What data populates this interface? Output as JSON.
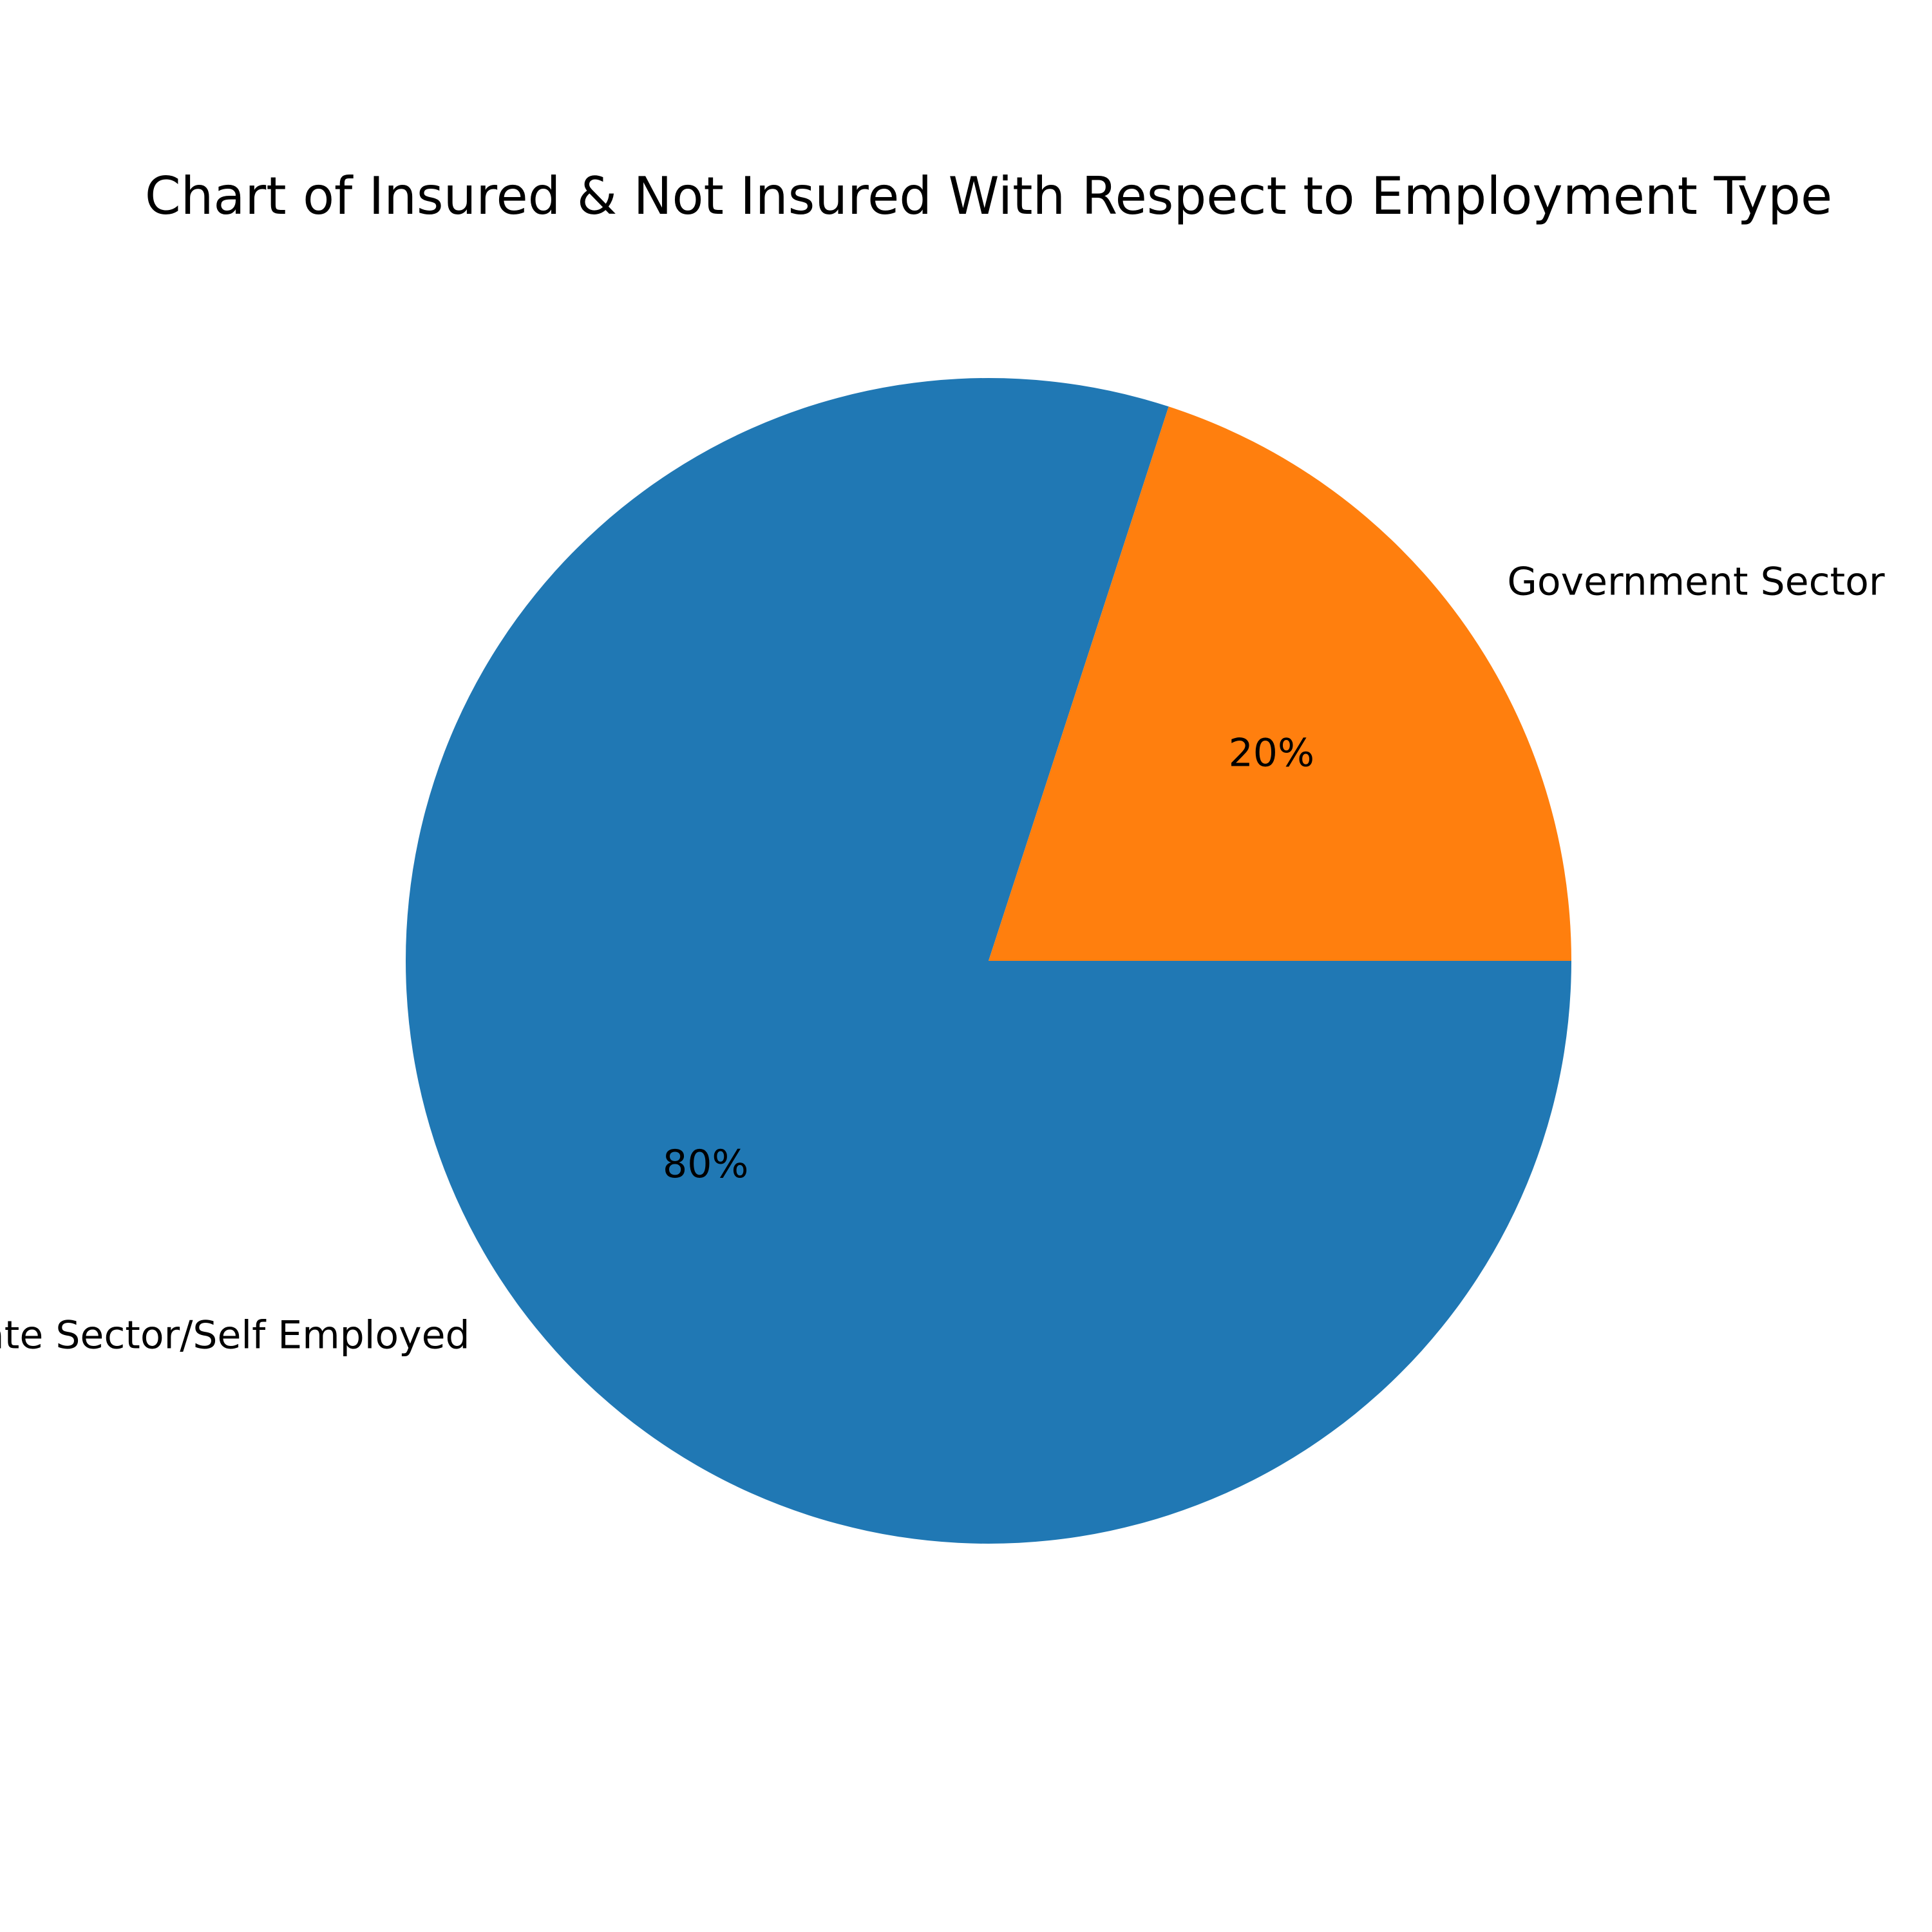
{
  "chart_data": {
    "type": "pie",
    "title": "Chart of Insured & Not Insured With Respect to Employment Type",
    "categories": [
      "Private Sector/Self Employed",
      "Government Sector"
    ],
    "values": [
      80,
      20
    ],
    "value_labels": [
      "80%",
      "20%"
    ],
    "colors": [
      "#2078b4",
      "#ff7f0e"
    ],
    "start_angle_deg": 0,
    "direction": "clockwise"
  }
}
